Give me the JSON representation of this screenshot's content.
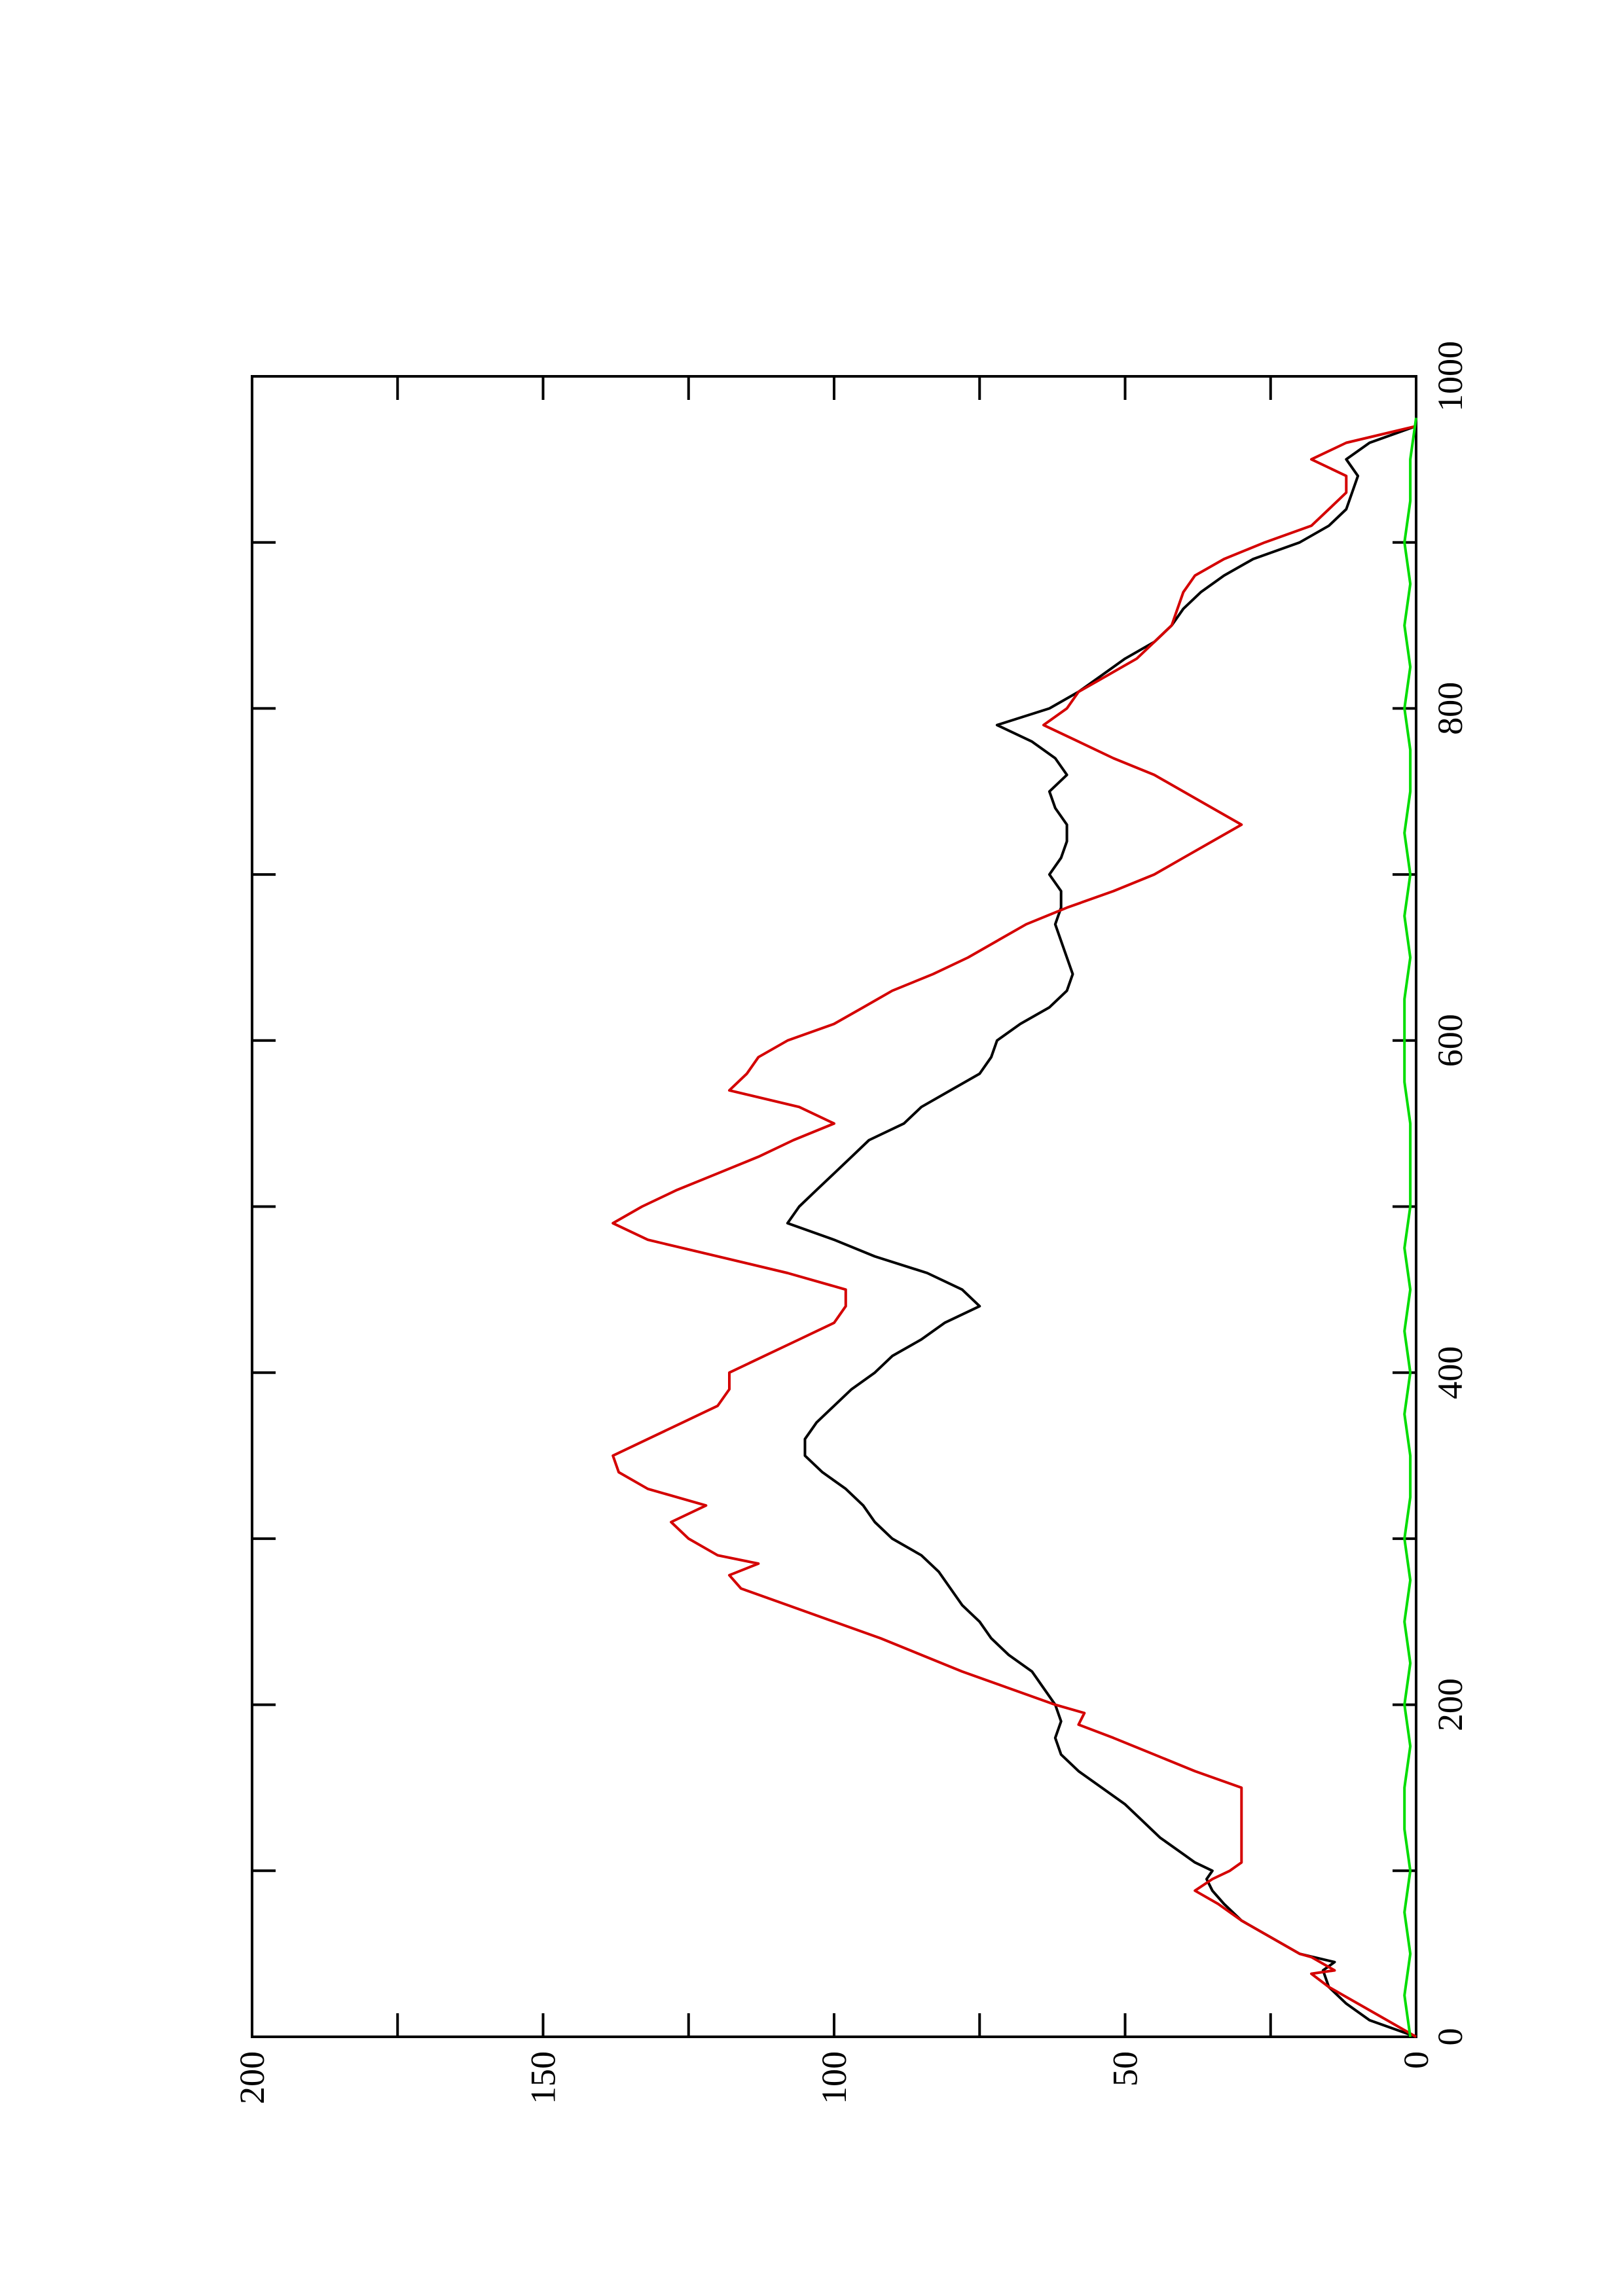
{
  "chart_data": {
    "type": "line",
    "orientation": "rotated 90 degrees clockwise (x axis runs top-to-bottom along the right side)",
    "title": "",
    "xlabel": "",
    "ylabel": "",
    "xlim": [
      0,
      1000
    ],
    "ylim": [
      0,
      200
    ],
    "x_ticks": [
      "0",
      "200",
      "400",
      "600",
      "800",
      "1000"
    ],
    "y_ticks": [
      "0",
      "50",
      "100",
      "150",
      "200"
    ],
    "grid": false,
    "legend": "none",
    "series": [
      {
        "color": "#000000",
        "x": [
          0,
          10,
          20,
          30,
          40,
          45,
          50,
          60,
          70,
          80,
          88,
          95,
          100,
          105,
          110,
          120,
          130,
          140,
          150,
          160,
          170,
          180,
          190,
          200,
          210,
          220,
          230,
          240,
          250,
          260,
          270,
          280,
          290,
          300,
          310,
          320,
          330,
          340,
          350,
          360,
          370,
          380,
          390,
          400,
          410,
          420,
          430,
          440,
          450,
          460,
          470,
          480,
          490,
          500,
          510,
          520,
          530,
          540,
          550,
          560,
          570,
          580,
          590,
          600,
          610,
          620,
          630,
          640,
          650,
          660,
          670,
          680,
          690,
          700,
          710,
          720,
          730,
          740,
          750,
          760,
          770,
          780,
          790,
          800,
          810,
          820,
          830,
          840,
          850,
          860,
          870,
          880,
          890,
          900,
          910,
          920,
          930,
          940,
          950,
          960,
          970
        ],
        "y": [
          0,
          8,
          12,
          15,
          16,
          14,
          20,
          25,
          30,
          33,
          35,
          36,
          35,
          38,
          40,
          44,
          47,
          50,
          54,
          58,
          61,
          62,
          61,
          62,
          64,
          66,
          70,
          73,
          75,
          78,
          80,
          82,
          85,
          90,
          93,
          95,
          98,
          102,
          105,
          105,
          103,
          100,
          97,
          93,
          90,
          85,
          81,
          75,
          78,
          84,
          93,
          100,
          108,
          106,
          103,
          100,
          97,
          94,
          88,
          85,
          80,
          75,
          73,
          72,
          68,
          63,
          60,
          59,
          60,
          61,
          62,
          61,
          61,
          63,
          61,
          60,
          60,
          62,
          63,
          60,
          62,
          66,
          72,
          63,
          58,
          54,
          50,
          45,
          42,
          40,
          37,
          33,
          28,
          20,
          15,
          12,
          11,
          10,
          12,
          8,
          0
        ]
      },
      {
        "color": "#d40000",
        "x": [
          0,
          10,
          20,
          30,
          38,
          40,
          48,
          50,
          60,
          70,
          80,
          88,
          95,
          100,
          105,
          150,
          160,
          170,
          180,
          188,
          195,
          200,
          210,
          220,
          230,
          240,
          250,
          260,
          270,
          278,
          285,
          290,
          300,
          310,
          320,
          330,
          340,
          350,
          360,
          370,
          380,
          390,
          400,
          410,
          420,
          430,
          440,
          450,
          460,
          470,
          480,
          490,
          500,
          510,
          520,
          530,
          540,
          550,
          560,
          570,
          580,
          590,
          600,
          610,
          620,
          630,
          640,
          650,
          660,
          670,
          680,
          690,
          700,
          710,
          720,
          730,
          740,
          750,
          760,
          770,
          780,
          790,
          800,
          810,
          820,
          830,
          840,
          850,
          860,
          870,
          880,
          890,
          900,
          910,
          920,
          930,
          940,
          950,
          960,
          970
        ],
        "y": [
          0,
          5,
          10,
          15,
          18,
          14,
          18,
          20,
          25,
          30,
          34,
          38,
          35,
          32,
          30,
          30,
          38,
          45,
          52,
          58,
          57,
          62,
          70,
          78,
          85,
          92,
          100,
          108,
          116,
          118,
          113,
          120,
          125,
          128,
          122,
          132,
          137,
          138,
          132,
          126,
          120,
          118,
          118,
          112,
          106,
          100,
          98,
          98,
          108,
          120,
          132,
          138,
          133,
          127,
          120,
          113,
          107,
          100,
          106,
          118,
          115,
          113,
          108,
          100,
          95,
          90,
          83,
          77,
          72,
          67,
          60,
          52,
          45,
          40,
          35,
          30,
          35,
          40,
          45,
          52,
          58,
          64,
          60,
          58,
          53,
          48,
          45,
          42,
          41,
          40,
          38,
          33,
          26,
          18,
          15,
          12,
          12,
          18,
          12,
          0
        ]
      },
      {
        "color": "#00dd00",
        "x": [
          0,
          25,
          50,
          75,
          100,
          125,
          150,
          175,
          200,
          225,
          250,
          275,
          300,
          325,
          350,
          375,
          400,
          425,
          450,
          475,
          500,
          525,
          550,
          575,
          600,
          625,
          650,
          675,
          700,
          725,
          750,
          775,
          800,
          825,
          850,
          875,
          900,
          925,
          950,
          975
        ],
        "y": [
          1,
          2,
          1,
          2,
          1,
          2,
          2,
          1,
          2,
          1,
          2,
          1,
          2,
          1,
          1,
          2,
          1,
          2,
          1,
          2,
          1,
          1,
          1,
          2,
          2,
          2,
          1,
          2,
          1,
          2,
          1,
          1,
          2,
          1,
          2,
          1,
          2,
          1,
          1,
          0
        ]
      }
    ]
  }
}
